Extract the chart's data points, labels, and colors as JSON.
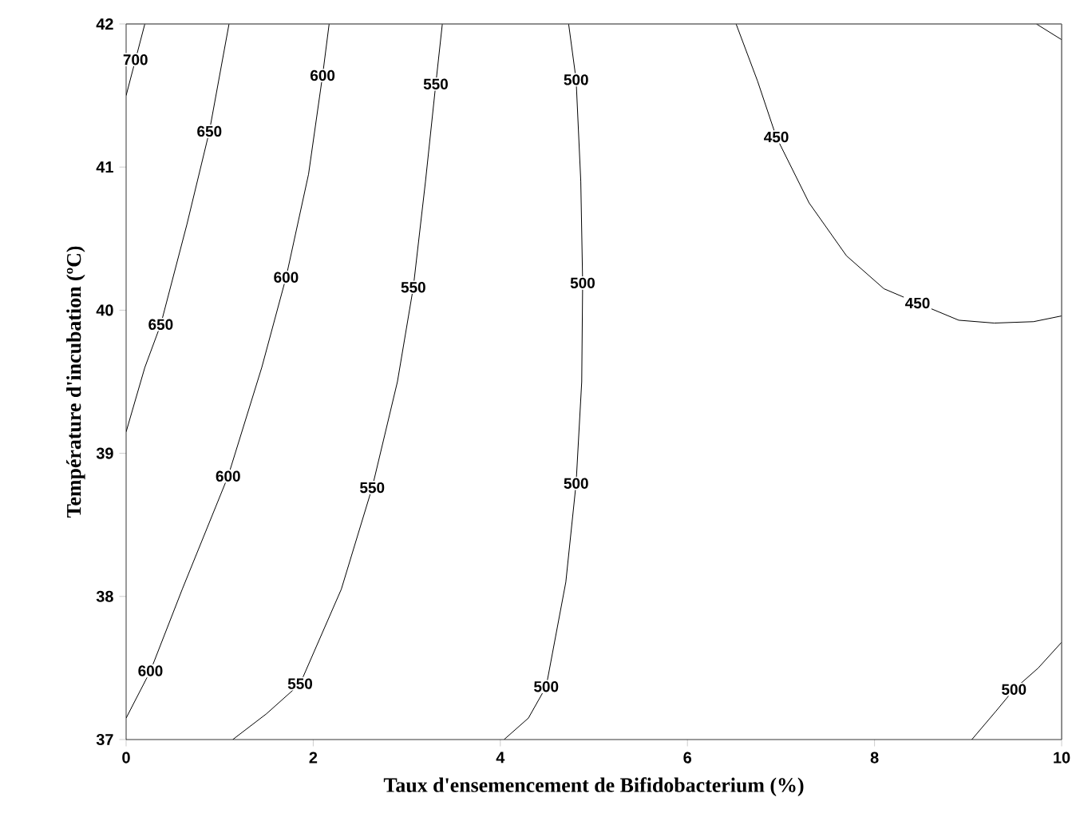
{
  "chart_data": {
    "type": "line",
    "xlabel": "Taux d'ensemencement de Bifidobacterium (%)",
    "ylabel": "Température d'incubation (ºC)",
    "xlim": [
      0,
      10
    ],
    "ylim": [
      37,
      42
    ],
    "xticks": [
      0,
      2,
      4,
      6,
      8,
      10
    ],
    "yticks": [
      37,
      38,
      39,
      40,
      41,
      42
    ],
    "grid": false,
    "series": [
      {
        "color": "#000000",
        "x": [
          0,
          0.1,
          0.2
        ],
        "values": [
          41.5,
          41.75,
          42
        ]
      },
      {
        "color": "#000000",
        "x": [
          0,
          0.2,
          0.37,
          0.65,
          0.89,
          1.1
        ],
        "values": [
          39.15,
          39.6,
          39.9,
          40.6,
          41.25,
          42
        ]
      },
      {
        "color": "#000000",
        "x": [
          0,
          0.26,
          0.6,
          1.09,
          1.45,
          1.71,
          1.95,
          2.1,
          2.17
        ],
        "values": [
          37.15,
          37.48,
          38.05,
          38.84,
          39.6,
          40.23,
          40.95,
          41.64,
          42
        ]
      },
      {
        "color": "#000000",
        "x": [
          1.14,
          1.5,
          1.86,
          2.3,
          2.63,
          2.9,
          3.07,
          3.2,
          3.31,
          3.38
        ],
        "values": [
          37,
          37.18,
          37.39,
          38.05,
          38.76,
          39.5,
          40.16,
          40.9,
          41.58,
          42
        ]
      },
      {
        "color": "#000000",
        "x": [
          4.04,
          4.3,
          4.49,
          4.7,
          4.81,
          4.87,
          4.88,
          4.86,
          4.81,
          4.73
        ],
        "values": [
          37,
          37.15,
          37.37,
          38.1,
          38.79,
          39.5,
          40.19,
          40.9,
          41.61,
          42
        ]
      },
      {
        "color": "#000000",
        "x": [
          9.04,
          9.3,
          9.49,
          9.75,
          10
        ],
        "values": [
          37,
          37.2,
          37.35,
          37.5,
          37.68
        ]
      },
      {
        "color": "#000000",
        "x": [
          6.52,
          6.75,
          6.95,
          7.3,
          7.7,
          8.1,
          8.46,
          8.9,
          9.28,
          9.7,
          10
        ],
        "values": [
          42,
          41.6,
          41.21,
          40.75,
          40.38,
          40.15,
          40.05,
          39.93,
          39.91,
          39.92,
          39.96
        ]
      },
      {
        "color": "#000000",
        "x": [
          9.73,
          10
        ],
        "values": [
          42,
          41.89
        ]
      }
    ],
    "annotations": [
      {
        "text": "700",
        "x": 0.1,
        "y": 41.75
      },
      {
        "text": "650",
        "x": 0.89,
        "y": 41.25
      },
      {
        "text": "650",
        "x": 0.37,
        "y": 39.9
      },
      {
        "text": "600",
        "x": 2.1,
        "y": 41.64
      },
      {
        "text": "600",
        "x": 1.71,
        "y": 40.23
      },
      {
        "text": "600",
        "x": 1.09,
        "y": 38.84
      },
      {
        "text": "600",
        "x": 0.26,
        "y": 37.48
      },
      {
        "text": "550",
        "x": 3.31,
        "y": 41.58
      },
      {
        "text": "550",
        "x": 3.07,
        "y": 40.16
      },
      {
        "text": "550",
        "x": 2.63,
        "y": 38.76
      },
      {
        "text": "550",
        "x": 1.86,
        "y": 37.39
      },
      {
        "text": "500",
        "x": 4.81,
        "y": 41.61
      },
      {
        "text": "500",
        "x": 4.88,
        "y": 40.19
      },
      {
        "text": "500",
        "x": 4.81,
        "y": 38.79
      },
      {
        "text": "500",
        "x": 4.49,
        "y": 37.37
      },
      {
        "text": "500",
        "x": 9.49,
        "y": 37.35
      },
      {
        "text": "450",
        "x": 6.95,
        "y": 41.21
      },
      {
        "text": "450",
        "x": 8.46,
        "y": 40.05
      }
    ]
  }
}
